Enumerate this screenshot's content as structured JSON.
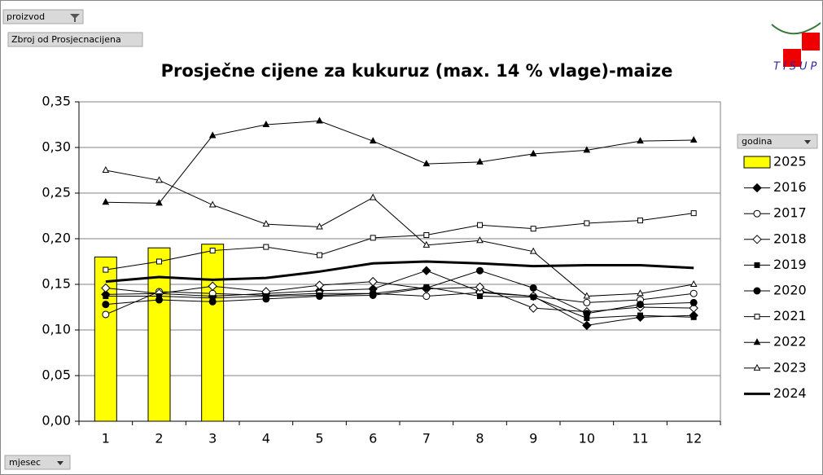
{
  "chart_data": {
    "type": "line",
    "title": "Prosječne cijene za kukuruz (max. 14 % vlage)-maize",
    "pivot_field": "proizvod",
    "value_field": "Zbroj od Prosjecnacijena",
    "legend_title": "godina",
    "axis_field": "mjesec",
    "logo_text": "TISUP",
    "categories": [
      "1",
      "2",
      "3",
      "4",
      "5",
      "6",
      "7",
      "8",
      "9",
      "10",
      "11",
      "12"
    ],
    "ylim": [
      0,
      0.35
    ],
    "yticks": [
      {
        "value": 0,
        "label": "0,00"
      },
      {
        "value": 0.05,
        "label": "0,05"
      },
      {
        "value": 0.1,
        "label": "0,10"
      },
      {
        "value": 0.15,
        "label": "0,15"
      },
      {
        "value": 0.2,
        "label": "0,20"
      },
      {
        "value": 0.25,
        "label": "0,25"
      },
      {
        "value": 0.3,
        "label": "0,30"
      },
      {
        "value": 0.35,
        "label": "0,35"
      }
    ],
    "grid": true,
    "legend": "right",
    "series": [
      {
        "name": "2025",
        "type": "bar",
        "color": "#ffff00",
        "values": [
          0.18,
          0.19,
          0.194,
          null,
          null,
          null,
          null,
          null,
          null,
          null,
          null,
          null
        ]
      },
      {
        "name": "2016",
        "color": "#000000",
        "marker": "diamond-filled",
        "values": [
          0.139,
          0.14,
          0.137,
          0.14,
          0.143,
          0.145,
          0.165,
          0.142,
          0.137,
          0.105,
          0.114,
          0.116
        ]
      },
      {
        "name": "2017",
        "color": "#000000",
        "marker": "circle-open",
        "values": [
          0.117,
          0.142,
          0.14,
          0.138,
          0.14,
          0.14,
          0.137,
          0.141,
          0.137,
          0.13,
          0.133,
          0.14
        ]
      },
      {
        "name": "2018",
        "color": "#000000",
        "marker": "diamond-open",
        "values": [
          0.146,
          0.14,
          0.148,
          0.142,
          0.149,
          0.153,
          0.145,
          0.147,
          0.124,
          0.12,
          0.125,
          0.124
        ]
      },
      {
        "name": "2019",
        "color": "#000000",
        "marker": "square-filled",
        "values": [
          0.137,
          0.137,
          0.135,
          0.137,
          0.138,
          0.14,
          0.147,
          0.137,
          0.136,
          0.113,
          0.116,
          0.114
        ]
      },
      {
        "name": "2020",
        "color": "#000000",
        "marker": "circle-filled",
        "values": [
          0.128,
          0.133,
          0.131,
          0.134,
          0.137,
          0.138,
          0.146,
          0.165,
          0.146,
          0.118,
          0.128,
          0.13
        ]
      },
      {
        "name": "2021",
        "color": "#000000",
        "marker": "square-open",
        "values": [
          0.166,
          0.175,
          0.187,
          0.191,
          0.182,
          0.201,
          0.204,
          0.215,
          0.211,
          0.217,
          0.22,
          0.228
        ]
      },
      {
        "name": "2022",
        "color": "#000000",
        "marker": "triangle-filled",
        "values": [
          0.24,
          0.239,
          0.313,
          0.325,
          0.329,
          0.307,
          0.282,
          0.284,
          0.293,
          0.297,
          0.307,
          0.308
        ]
      },
      {
        "name": "2023",
        "color": "#000000",
        "marker": "triangle-open",
        "values": [
          0.275,
          0.264,
          0.237,
          0.216,
          0.213,
          0.245,
          0.193,
          0.198,
          0.186,
          0.137,
          0.14,
          0.15
        ]
      },
      {
        "name": "2024",
        "color": "#000000",
        "marker": "none",
        "width": 3,
        "values": [
          0.153,
          0.158,
          0.155,
          0.157,
          0.164,
          0.173,
          0.175,
          0.173,
          0.17,
          0.171,
          0.171,
          0.168
        ]
      }
    ]
  }
}
